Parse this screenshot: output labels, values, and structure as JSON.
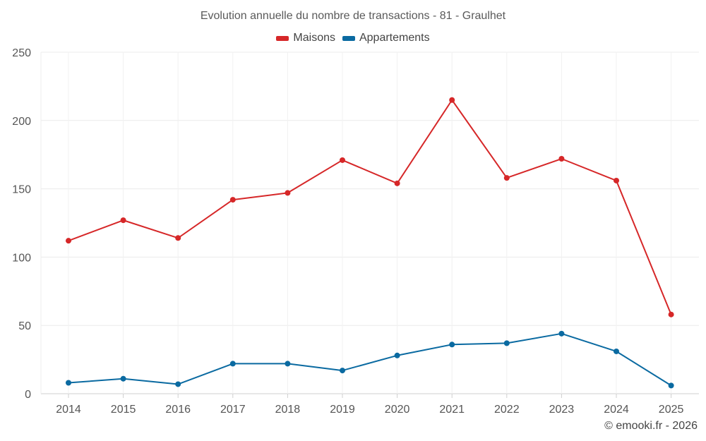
{
  "chart_data": {
    "type": "line",
    "title": "Evolution annuelle du nombre de transactions - 81 - Graulhet",
    "xlabel": "",
    "ylabel": "",
    "categories": [
      "2014",
      "2015",
      "2016",
      "2017",
      "2018",
      "2019",
      "2020",
      "2021",
      "2022",
      "2023",
      "2024",
      "2025"
    ],
    "ylim": [
      0,
      250
    ],
    "yticks": [
      0,
      50,
      100,
      150,
      200,
      250
    ],
    "grid": true,
    "legend_position": "top-center",
    "series": [
      {
        "name": "Maisons",
        "color": "#d62728",
        "values": [
          112,
          127,
          114,
          142,
          147,
          171,
          154,
          215,
          158,
          172,
          156,
          58
        ]
      },
      {
        "name": "Appartements",
        "color": "#0a6aa1",
        "values": [
          8,
          11,
          7,
          22,
          22,
          17,
          28,
          36,
          37,
          44,
          31,
          6
        ]
      }
    ]
  },
  "credit": "© emooki.fr - 2026"
}
